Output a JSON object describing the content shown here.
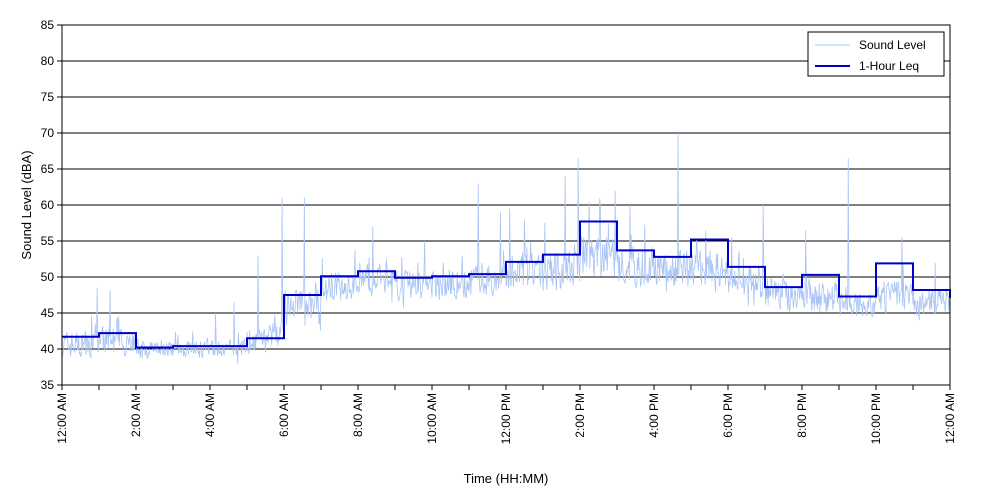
{
  "chart_data": {
    "type": "line",
    "title": "",
    "xlabel": "Time (HH:MM)",
    "ylabel": "Sound Level (dBA)",
    "ylim": [
      35,
      85
    ],
    "xlim_hours": [
      0,
      24
    ],
    "y_ticks": [
      35,
      40,
      45,
      50,
      55,
      60,
      65,
      70,
      75,
      80,
      85
    ],
    "x_ticks": [
      {
        "hour": 0,
        "label": "12:00 AM"
      },
      {
        "hour": 2,
        "label": "2:00 AM"
      },
      {
        "hour": 4,
        "label": "4:00 AM"
      },
      {
        "hour": 6,
        "label": "6:00 AM"
      },
      {
        "hour": 8,
        "label": "8:00 AM"
      },
      {
        "hour": 10,
        "label": "10:00 AM"
      },
      {
        "hour": 12,
        "label": "12:00 PM"
      },
      {
        "hour": 14,
        "label": "2:00 PM"
      },
      {
        "hour": 16,
        "label": "4:00 PM"
      },
      {
        "hour": 18,
        "label": "6:00 PM"
      },
      {
        "hour": 20,
        "label": "8:00 PM"
      },
      {
        "hour": 22,
        "label": "10:00 PM"
      },
      {
        "hour": 24,
        "label": "12:00 AM"
      }
    ],
    "minor_x_ticks_hours": 1,
    "grid": "horizontal",
    "legend_position": "top-right",
    "series": [
      {
        "name": "Sound Level",
        "color": "#a9c4f5",
        "style": "thin-line",
        "hourly_base": [
          40.5,
          41.5,
          40,
          40,
          40,
          41,
          45.5,
          48.5,
          49.5,
          49,
          49,
          49.5,
          50.5,
          51,
          53.5,
          51.5,
          51,
          51.5,
          49.5,
          47.5,
          47.5,
          46,
          47.5,
          46.5
        ],
        "hourly_noise": [
          2.3,
          2.3,
          1.5,
          1.5,
          1.5,
          2,
          3,
          2.5,
          2.5,
          2.5,
          2.5,
          2.8,
          3,
          3.3,
          3.5,
          3.3,
          3.3,
          3,
          2.6,
          2.6,
          2.6,
          2.3,
          2.6,
          2.3
        ],
        "peaks": [
          {
            "hour": 0.95,
            "value": 48.5
          },
          {
            "hour": 1.3,
            "value": 48.2
          },
          {
            "hour": 4.15,
            "value": 45
          },
          {
            "hour": 4.65,
            "value": 46.5
          },
          {
            "hour": 5.3,
            "value": 53
          },
          {
            "hour": 5.95,
            "value": 61
          },
          {
            "hour": 6.55,
            "value": 61
          },
          {
            "hour": 8.4,
            "value": 57
          },
          {
            "hour": 9.8,
            "value": 55
          },
          {
            "hour": 11.25,
            "value": 63
          },
          {
            "hour": 11.85,
            "value": 59
          },
          {
            "hour": 12.1,
            "value": 59.5
          },
          {
            "hour": 12.5,
            "value": 58
          },
          {
            "hour": 13.05,
            "value": 57.5
          },
          {
            "hour": 13.6,
            "value": 64
          },
          {
            "hour": 13.95,
            "value": 66.5
          },
          {
            "hour": 14.55,
            "value": 60
          },
          {
            "hour": 14.95,
            "value": 62
          },
          {
            "hour": 15.35,
            "value": 60
          },
          {
            "hour": 16.65,
            "value": 70
          },
          {
            "hour": 17.4,
            "value": 56.5
          },
          {
            "hour": 18.1,
            "value": 55.5
          },
          {
            "hour": 18.95,
            "value": 60
          },
          {
            "hour": 20.1,
            "value": 56.5
          },
          {
            "hour": 21.25,
            "value": 66.5
          },
          {
            "hour": 22.7,
            "value": 55.5
          },
          {
            "hour": 23.6,
            "value": 52
          }
        ]
      },
      {
        "name": "1-Hour Leq",
        "color": "#0000cc",
        "style": "step",
        "hourly_values": [
          41.7,
          42.2,
          40.2,
          40.4,
          40.4,
          41.5,
          47.5,
          50.1,
          50.8,
          49.9,
          50.1,
          50.4,
          52.1,
          53.1,
          57.7,
          53.7,
          52.8,
          55.2,
          51.4,
          48.6,
          50.3,
          47.3,
          51.9,
          48.2,
          47.1
        ]
      }
    ]
  }
}
